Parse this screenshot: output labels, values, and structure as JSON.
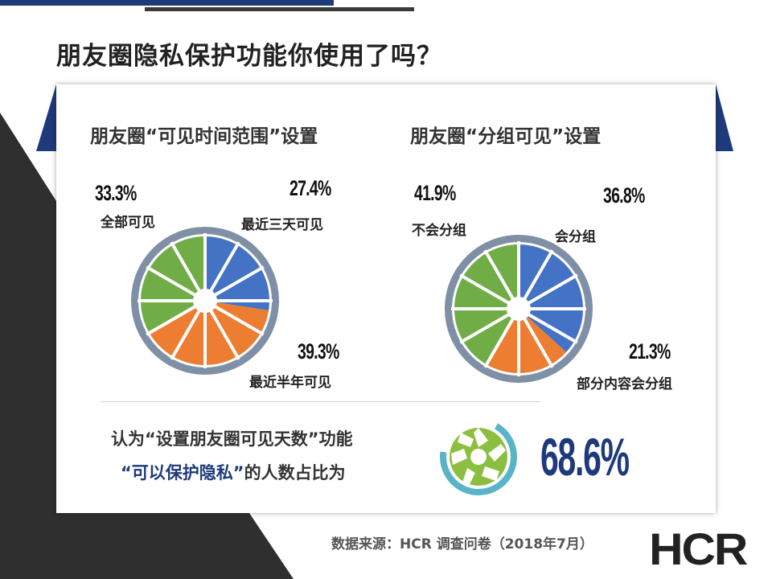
{
  "page": {
    "title": "朋友圈隐私保护功能你使用了吗？",
    "source": "数据来源：HCR 调查问卷（2018年7月）",
    "logo": "HCR"
  },
  "colors": {
    "blue": "#4472c4",
    "orange": "#ed7d31",
    "green": "#70ad47",
    "ring": "#7f8fa6",
    "navy": "#1f3a7a",
    "teal": "#5ab4c8"
  },
  "chart_data": [
    {
      "type": "pie",
      "title": "朋友圈“可见时间范围”设置",
      "slices": [
        {
          "label": "最近三天可见",
          "value": 27.4,
          "display": "27.4%",
          "color": "#4472c4"
        },
        {
          "label": "最近半年可见",
          "value": 39.3,
          "display": "39.3%",
          "color": "#ed7d31"
        },
        {
          "label": "全部可见",
          "value": 33.3,
          "display": "33.3%",
          "color": "#70ad47"
        }
      ]
    },
    {
      "type": "pie",
      "title": "朋友圈“分组可见”设置",
      "slices": [
        {
          "label": "会分组",
          "value": 36.8,
          "display": "36.8%",
          "color": "#4472c4"
        },
        {
          "label": "部分内容会分组",
          "value": 21.3,
          "display": "21.3%",
          "color": "#ed7d31"
        },
        {
          "label": "不会分组",
          "value": 41.9,
          "display": "41.9%",
          "color": "#70ad47"
        }
      ]
    }
  ],
  "summary": {
    "line1": "认为“设置朋友圈可见天数”功能",
    "line2_highlight": "“可以保护隐私”",
    "line2_rest": "的人数占比为",
    "value": 68.6,
    "display": "68.6%",
    "icon": "aperture-icon"
  }
}
